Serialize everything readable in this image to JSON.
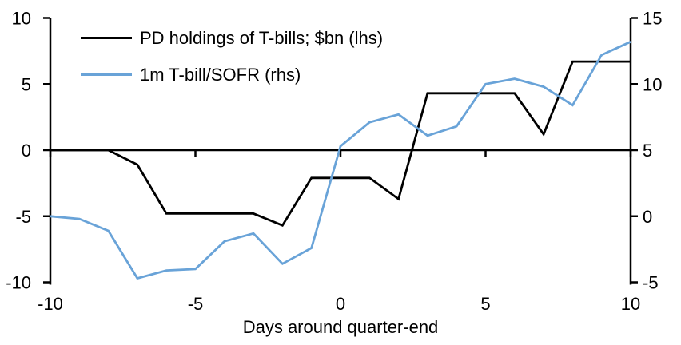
{
  "chart_data": {
    "type": "line",
    "title": "",
    "xlabel": "Days around quarter-end",
    "ylabel_left": "",
    "ylabel_right": "",
    "grid": false,
    "legend_position": "top-left",
    "background": "#ffffff",
    "x": [
      -10,
      -9,
      -8,
      -7,
      -6,
      -5,
      -4,
      -3,
      -2,
      -1,
      0,
      1,
      2,
      3,
      4,
      5,
      6,
      7,
      8,
      9,
      10
    ],
    "series": [
      {
        "name": "PD holdings of T-bills; $bn (lhs)",
        "axis": "left",
        "color": "#000000",
        "values": [
          0,
          0,
          0,
          -1.1,
          -4.8,
          -4.8,
          -4.8,
          -4.8,
          -5.7,
          -2.1,
          -2.1,
          -2.1,
          -3.7,
          4.3,
          4.3,
          4.3,
          4.3,
          1.2,
          6.7,
          6.7,
          6.7
        ]
      },
      {
        "name": "1m T-bill/SOFR (rhs)",
        "axis": "right",
        "color": "#69A3D8",
        "values": [
          0,
          -0.2,
          -1.1,
          -4.7,
          -4.1,
          -4.0,
          -1.9,
          -1.3,
          -3.6,
          -2.4,
          5.3,
          7.1,
          7.7,
          6.1,
          6.8,
          10.0,
          10.4,
          9.8,
          8.4,
          12.2,
          13.2
        ]
      }
    ],
    "axes": {
      "left": {
        "range": [
          -10,
          10
        ],
        "ticks": [
          10,
          5,
          0,
          -5,
          -10
        ]
      },
      "right": {
        "range": [
          -5,
          15
        ],
        "ticks": [
          15,
          10,
          5,
          0,
          -5
        ]
      },
      "x": {
        "range": [
          -10,
          10
        ],
        "ticks": [
          -10,
          -5,
          0,
          5,
          10
        ]
      }
    },
    "zero_line": true
  }
}
